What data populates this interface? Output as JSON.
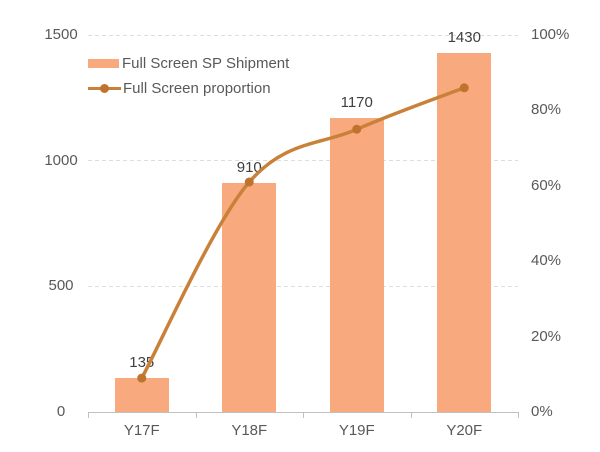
{
  "chart_data": {
    "type": "combo-bar-line",
    "title": "",
    "categories": [
      "Y17F",
      "Y18F",
      "Y19F",
      "Y20F"
    ],
    "series": [
      {
        "name": "Full Screen SP Shipment",
        "chart_type": "bar",
        "axis": "left",
        "values": [
          135,
          910,
          1170,
          1430
        ],
        "value_labels": [
          "135",
          "910",
          "1170",
          "1430"
        ]
      },
      {
        "name": "Full Screen proportion",
        "chart_type": "line",
        "axis": "right",
        "unit": "%",
        "values": [
          9,
          61,
          75,
          86
        ]
      }
    ],
    "left_axis": {
      "min": 0,
      "max": 1500,
      "ticks": [
        "1500",
        "1000",
        "500",
        "0"
      ]
    },
    "right_axis": {
      "min": 0,
      "max": 100,
      "ticks": [
        "100%",
        "80%",
        "60%",
        "40%",
        "20%",
        "0%"
      ]
    },
    "grid": "horizontal-dashed",
    "legend_position": "top-left"
  },
  "colors": {
    "background": "#FFFFFF",
    "bar_fill": "#F8A97E",
    "line_stroke": "#C9813A",
    "marker_fill": "#C0732C",
    "gridline": "#DDDDDD",
    "axis_line": "#C0C0C0",
    "axis_text": "#595959",
    "value_label_text": "#3F3F3F"
  }
}
